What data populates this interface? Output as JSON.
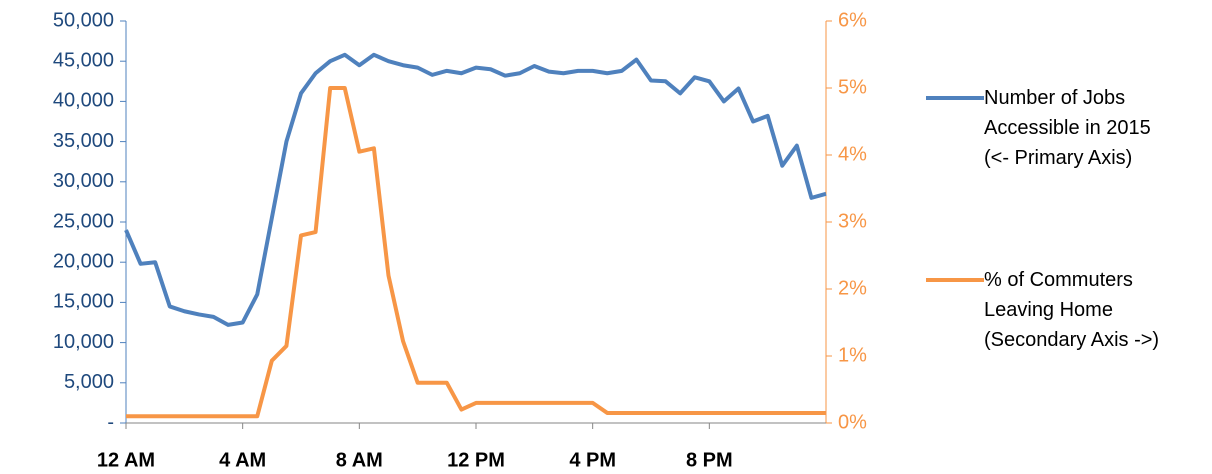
{
  "chart_data": {
    "type": "line",
    "x": [
      0,
      0.5,
      1,
      1.5,
      2,
      2.5,
      3,
      3.5,
      4,
      4.5,
      5,
      5.5,
      6,
      6.5,
      7,
      7.5,
      8,
      8.5,
      9,
      9.5,
      10,
      10.5,
      11,
      11.5,
      12,
      12.5,
      13,
      13.5,
      14,
      14.5,
      15,
      15.5,
      16,
      16.5,
      17,
      17.5,
      18,
      18.5,
      19,
      19.5,
      20,
      20.5,
      21,
      21.5,
      22,
      22.5,
      23,
      23.5,
      24
    ],
    "xlim": [
      0,
      24
    ],
    "xticks": [
      {
        "value": 0,
        "label": "12 AM"
      },
      {
        "value": 4,
        "label": "4 AM"
      },
      {
        "value": 8,
        "label": "8 AM"
      },
      {
        "value": 12,
        "label": "12 PM"
      },
      {
        "value": 16,
        "label": "4 PM"
      },
      {
        "value": 20,
        "label": "8 PM"
      }
    ],
    "ylim": [
      0,
      50000
    ],
    "yticks": [
      {
        "value": 0,
        "label": "-"
      },
      {
        "value": 5000,
        "label": "5,000"
      },
      {
        "value": 10000,
        "label": "10,000"
      },
      {
        "value": 15000,
        "label": "15,000"
      },
      {
        "value": 20000,
        "label": "20,000"
      },
      {
        "value": 25000,
        "label": "25,000"
      },
      {
        "value": 30000,
        "label": "30,000"
      },
      {
        "value": 35000,
        "label": "35,000"
      },
      {
        "value": 40000,
        "label": "40,000"
      },
      {
        "value": 45000,
        "label": "45,000"
      },
      {
        "value": 50000,
        "label": "50,000"
      }
    ],
    "y2lim": [
      0,
      6
    ],
    "y2ticks": [
      {
        "value": 0,
        "label": "0%"
      },
      {
        "value": 1,
        "label": "1%"
      },
      {
        "value": 2,
        "label": "2%"
      },
      {
        "value": 3,
        "label": "3%"
      },
      {
        "value": 4,
        "label": "4%"
      },
      {
        "value": 5,
        "label": "5%"
      },
      {
        "value": 6,
        "label": "6%"
      }
    ],
    "series": [
      {
        "name": "Number of Jobs\nAccessible in 2015\n(<- Primary Axis)",
        "color": "#4f81bd",
        "axis": "y",
        "values": [
          24000,
          19800,
          20000,
          14500,
          13900,
          13500,
          13200,
          12200,
          12500,
          16000,
          25500,
          35000,
          41000,
          43500,
          45000,
          45800,
          44500,
          45800,
          45000,
          44500,
          44200,
          43300,
          43800,
          43500,
          44200,
          44000,
          43200,
          43500,
          44400,
          43700,
          43500,
          43800,
          43800,
          43500,
          43800,
          45200,
          42600,
          42500,
          41000,
          43000,
          42500,
          40000,
          41600,
          37500,
          38200,
          32000,
          34500,
          28000,
          28500
        ]
      },
      {
        "name": "% of Commuters\nLeaving Home\n(Secondary Axis ->)",
        "color": "#f79646",
        "axis": "y2",
        "values": [
          0.1,
          0.1,
          0.1,
          0.1,
          0.1,
          0.1,
          0.1,
          0.1,
          0.1,
          0.1,
          0.93,
          1.15,
          2.8,
          2.85,
          5.0,
          5.0,
          4.05,
          4.1,
          2.2,
          1.22,
          0.6,
          0.6,
          0.6,
          0.2,
          0.3,
          0.3,
          0.3,
          0.3,
          0.3,
          0.3,
          0.3,
          0.3,
          0.3,
          0.15,
          0.15,
          0.15,
          0.15,
          0.15,
          0.15,
          0.15,
          0.15,
          0.15,
          0.15,
          0.15,
          0.15,
          0.15,
          0.15,
          0.15,
          0.15
        ]
      }
    ]
  }
}
